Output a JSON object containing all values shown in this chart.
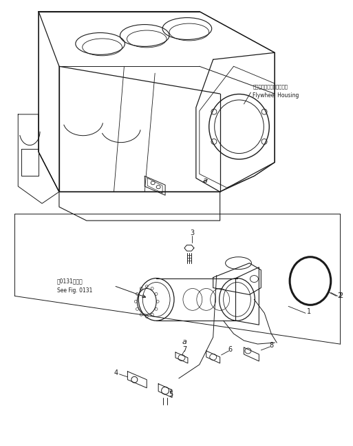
{
  "bg_color": "#ffffff",
  "line_color": "#1a1a1a",
  "flywheel_label_jp": "フライホイールハウジング",
  "flywheel_label_en": "Flywheel Housing",
  "see_fig_jp": "第0131図参照",
  "see_fig_en": "See Fig. 0131",
  "figsize": [
    5.13,
    6.47
  ],
  "dpi": 100
}
